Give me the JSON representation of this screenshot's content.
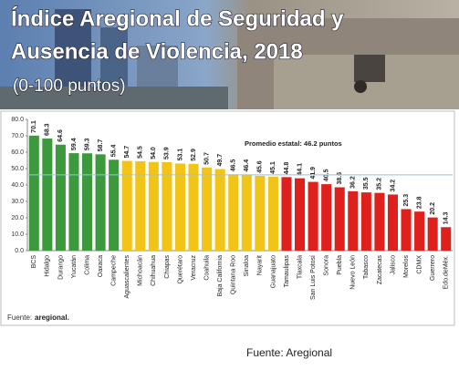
{
  "header": {
    "title_line1": "Índice Aregional de Seguridad y",
    "title_line2": "Ausencia de Violencia, 2018",
    "subtitle": "(0-100 puntos)"
  },
  "chart_data": {
    "type": "bar",
    "categories": [
      "BCS",
      "Hidalgo",
      "Durango",
      "Yucatán",
      "Colima",
      "Oaxaca",
      "Campeche",
      "Aguascalientes",
      "Michoacán",
      "Chihuahua",
      "Chiapas",
      "Querétaro",
      "Veracruz",
      "Coahuila",
      "Baja California",
      "Quintana Roo",
      "Sinaloa",
      "Nayarit",
      "Guanajuato",
      "Tamaulipas",
      "Tlaxcala",
      "San Luis Potosí",
      "Sonora",
      "Puebla",
      "Nuevo León",
      "Tabasco",
      "Zacatecas",
      "Jalisco",
      "Morelos",
      "CDMX",
      "Guerrero",
      "Edo.deMéx."
    ],
    "values": [
      70.1,
      68.3,
      64.6,
      59.4,
      59.3,
      58.7,
      55.4,
      54.7,
      54.5,
      54.0,
      53.9,
      53.1,
      52.9,
      50.7,
      49.7,
      46.5,
      46.4,
      45.6,
      45.1,
      44.8,
      44.1,
      41.9,
      40.5,
      38.6,
      36.2,
      35.5,
      35.2,
      34.2,
      25.3,
      23.8,
      20.2,
      14.3
    ],
    "value_labels": [
      "70.1",
      "68.3",
      "64.6",
      "59.4",
      "59.3",
      "58.7",
      "55.4",
      "54.7",
      "54.5",
      "54.0",
      "53.9",
      "53.1",
      "52.9",
      "50.7",
      "49.7",
      "46.5",
      "46.4",
      "45.6",
      "45.1",
      "44.8",
      "44.1",
      "41.9",
      "40.5",
      "38.6",
      "36.2",
      "35.5",
      "35.2",
      "34.2",
      "25.3",
      "23.8",
      "20.2",
      "14.3"
    ],
    "colors": [
      "#3c9a3c",
      "#3c9a3c",
      "#3c9a3c",
      "#3c9a3c",
      "#3c9a3c",
      "#3c9a3c",
      "#3c9a3c",
      "#f2c418",
      "#f2c418",
      "#f2c418",
      "#f2c418",
      "#f2c418",
      "#f2c418",
      "#f2c418",
      "#f2c418",
      "#f2c418",
      "#f2c418",
      "#f2c418",
      "#f2c418",
      "#e0201c",
      "#e0201c",
      "#e0201c",
      "#e0201c",
      "#e0201c",
      "#e0201c",
      "#e0201c",
      "#e0201c",
      "#e0201c",
      "#e0201c",
      "#e0201c",
      "#e0201c",
      "#e0201c"
    ],
    "ylim": [
      0,
      80
    ],
    "yticks": [
      {
        "value": 0,
        "label": "0.0"
      },
      {
        "value": 10,
        "label": "10.0"
      },
      {
        "value": 20,
        "label": "20.0"
      },
      {
        "value": 30,
        "label": "30.0"
      },
      {
        "value": 40,
        "label": "40.0"
      },
      {
        "value": 50,
        "label": "50.0"
      },
      {
        "value": 60,
        "label": "60.0"
      },
      {
        "value": 70,
        "label": "70.0"
      },
      {
        "value": 80,
        "label": "80.0"
      }
    ],
    "grid": false,
    "average": {
      "label": "Promedio estatal: 46.2 puntos",
      "value": 46.2,
      "color": "#8fc3e0"
    },
    "source": "Fuente:",
    "source_brand": "aregional."
  },
  "caption": "Fuente: Aregional"
}
